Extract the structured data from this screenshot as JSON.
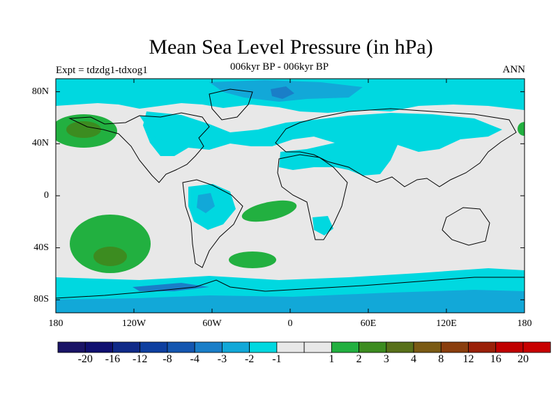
{
  "title": "Mean Sea Level Pressure (in hPa)",
  "subtitle": "006kyr BP - 006kyr BP",
  "experiment_label": "Expt = tdzdg1-tdxog1",
  "season_label": "ANN",
  "x_axis": {
    "ticks": [
      "180",
      "120W",
      "60W",
      "0",
      "60E",
      "120E",
      "180"
    ],
    "values": [
      -180,
      -120,
      -60,
      0,
      60,
      120,
      180
    ]
  },
  "y_axis": {
    "ticks": [
      "80N",
      "40N",
      "0",
      "40S",
      "80S"
    ],
    "values": [
      80,
      40,
      0,
      -40,
      -80
    ]
  },
  "colorbar": {
    "colors": [
      "#1a1466",
      "#101070",
      "#102a88",
      "#0e3fa0",
      "#1456b0",
      "#1a7ec8",
      "#12a8d8",
      "#00d8e0",
      "#e8e8e8",
      "#22b040",
      "#3c8c20",
      "#58701a",
      "#7a5a14",
      "#8a3e0e",
      "#9a2008",
      "#c00000"
    ],
    "labels": [
      "-20",
      "-16",
      "-12",
      "-8",
      "-4",
      "-3",
      "-2",
      "-1",
      "1",
      "2",
      "3",
      "4",
      "8",
      "12",
      "16",
      "20"
    ]
  },
  "map": {
    "background_color": "#e8e8e8",
    "colors": {
      "neg1": "#00d8e0",
      "neg2": "#12a8d8",
      "neg3": "#1a7ec8",
      "pos1": "#22b040",
      "pos2": "#3c8c20",
      "pos3": "#58701a",
      "coast": "#000000"
    }
  }
}
